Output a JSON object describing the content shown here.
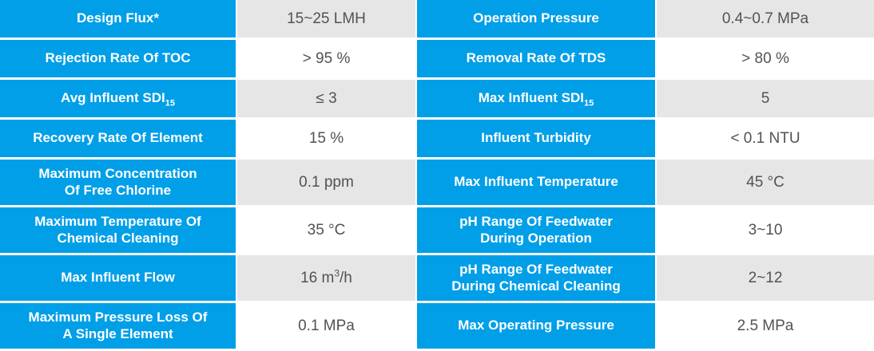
{
  "table": {
    "colors": {
      "accent": "#009fe8",
      "alt_cell": "#e6e6e6",
      "value_text": "#55524f",
      "label_text": "#ffffff"
    },
    "rows": [
      {
        "left": {
          "label": "Design Flux*",
          "value": "15~25 LMH"
        },
        "right": {
          "label": "Operation Pressure",
          "value": "0.4~0.7 MPa"
        }
      },
      {
        "left": {
          "label": "Rejection Rate Of TOC",
          "value": "> 95 %"
        },
        "right": {
          "label": "Removal Rate Of TDS",
          "value": "> 80 %"
        }
      },
      {
        "left": {
          "label": "Avg Influent SDI",
          "label_sub": "15",
          "value": "≤ 3"
        },
        "right": {
          "label": "Max Influent SDI",
          "label_sub": "15",
          "value": "5"
        }
      },
      {
        "left": {
          "label": "Recovery Rate Of Element",
          "value": "15 %"
        },
        "right": {
          "label": "Influent Turbidity",
          "value": "< 0.1 NTU"
        }
      },
      {
        "left": {
          "label": "Maximum Concentration\nOf Free Chlorine",
          "value": "0.1 ppm"
        },
        "right": {
          "label": "Max Influent Temperature",
          "value": "45 °C"
        }
      },
      {
        "left": {
          "label": "Maximum Temperature Of\nChemical Cleaning",
          "value": "35 °C"
        },
        "right": {
          "label": "pH Range Of Feedwater\nDuring Operation",
          "value": "3~10"
        }
      },
      {
        "left": {
          "label": "Max Influent Flow",
          "value": "16 m",
          "value_sup": "3",
          "value_post": "/h"
        },
        "right": {
          "label": "pH Range Of Feedwater\nDuring Chemical Cleaning",
          "value": "2~12"
        }
      },
      {
        "left": {
          "label": "Maximum Pressure Loss Of\nA Single Element",
          "value": "0.1 MPa"
        },
        "right": {
          "label": "Max Operating Pressure",
          "value": "2.5 MPa"
        }
      }
    ]
  }
}
